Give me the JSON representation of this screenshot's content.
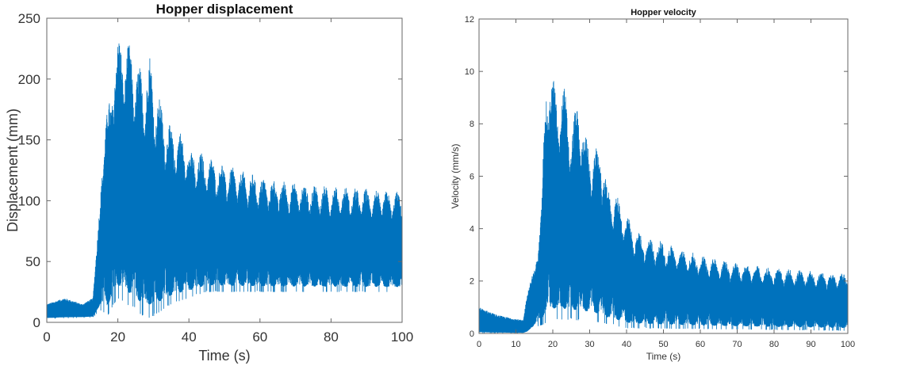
{
  "chart_data": [
    {
      "type": "line",
      "title": "Hopper displacement",
      "xlabel": "Time (s)",
      "ylabel": "Displacement (mm)",
      "xlim": [
        0,
        100
      ],
      "ylim": [
        0,
        250
      ],
      "xticks": [
        0,
        20,
        40,
        60,
        80,
        100
      ],
      "yticks": [
        0,
        50,
        100,
        150,
        200,
        250
      ],
      "grid": false,
      "color": "#0072bd",
      "envelope_upper": {
        "t": [
          0,
          5,
          10,
          13,
          15,
          16,
          18,
          19,
          22,
          24,
          27,
          29,
          31,
          33,
          35,
          37,
          40,
          45,
          50,
          55,
          60,
          65,
          70,
          80,
          90,
          100
        ],
        "v": [
          15,
          20,
          15,
          20,
          100,
          170,
          185,
          232,
          236,
          224,
          205,
          220,
          190,
          175,
          160,
          160,
          145,
          137,
          130,
          125,
          120,
          117,
          115,
          112,
          110,
          107
        ]
      },
      "envelope_lower": {
        "t": [
          0,
          13,
          15,
          17,
          20,
          25,
          28,
          30,
          35,
          40,
          45,
          50,
          60,
          70,
          80,
          100
        ],
        "v": [
          3,
          4,
          10,
          5,
          20,
          10,
          3,
          5,
          15,
          20,
          25,
          25,
          25,
          25,
          25,
          25
        ]
      }
    },
    {
      "type": "line",
      "title": "Hopper velocity",
      "xlabel": "Time (s)",
      "ylabel": "Velocity (mm/s)",
      "xlim": [
        0,
        100
      ],
      "ylim": [
        0,
        12
      ],
      "xticks": [
        0,
        10,
        20,
        30,
        40,
        50,
        60,
        70,
        80,
        90,
        100
      ],
      "yticks": [
        0,
        2,
        4,
        6,
        8,
        10,
        12
      ],
      "grid": false,
      "color": "#0072bd",
      "envelope_upper": {
        "t": [
          0,
          5,
          12,
          13,
          15,
          17,
          18,
          19,
          21,
          23,
          25,
          27,
          29,
          31,
          33,
          35,
          37,
          39,
          42,
          45,
          50,
          55,
          60,
          70,
          80,
          90,
          100
        ],
        "v": [
          1,
          0.7,
          0.5,
          1.5,
          2.5,
          5,
          9.5,
          10.5,
          9.2,
          9.5,
          8,
          9,
          7.5,
          7,
          7.2,
          5.5,
          5.4,
          4.8,
          4,
          3.7,
          3.5,
          3.2,
          3,
          2.7,
          2.5,
          2.4,
          2.3
        ]
      },
      "envelope_lower": {
        "t": [
          0,
          13,
          15,
          20,
          30,
          40,
          100
        ],
        "v": [
          0,
          0,
          0.2,
          0.5,
          0.5,
          0.2,
          0.1
        ]
      }
    }
  ]
}
